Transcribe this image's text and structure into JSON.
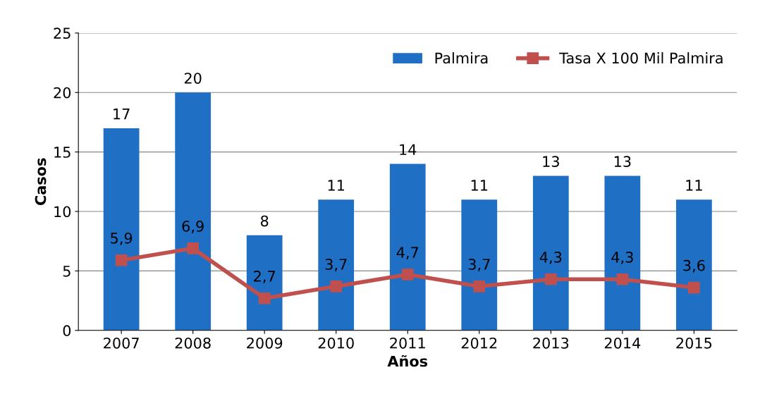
{
  "chart_data": {
    "type": "bar",
    "xlabel": "Años",
    "ylabel": "Casos",
    "categories": [
      "2007",
      "2008",
      "2009",
      "2010",
      "2011",
      "2012",
      "2013",
      "2014",
      "2015"
    ],
    "series": [
      {
        "name": "Palmira",
        "color": "#1f6fc5",
        "values": [
          17,
          20,
          8,
          11,
          14,
          11,
          13,
          13,
          11
        ],
        "value_labels": [
          "17",
          "20",
          "8",
          "11",
          "14",
          "11",
          "13",
          "13",
          "11"
        ]
      },
      {
        "name": "Tasa X 100 Mil Palmira",
        "type": "line",
        "color": "#c0504d",
        "marker": "square",
        "values": [
          5.9,
          6.9,
          2.7,
          3.7,
          4.7,
          3.7,
          4.3,
          4.3,
          3.6
        ],
        "value_labels": [
          "5,9",
          "6,9",
          "2,7",
          "3,7",
          "4,7",
          "3,7",
          "4,3",
          "4,3",
          "3,6"
        ]
      }
    ],
    "ylim": [
      0,
      25
    ],
    "yticks": [
      0,
      5,
      10,
      15,
      20,
      25
    ],
    "grid": "y",
    "legend": "top right"
  }
}
